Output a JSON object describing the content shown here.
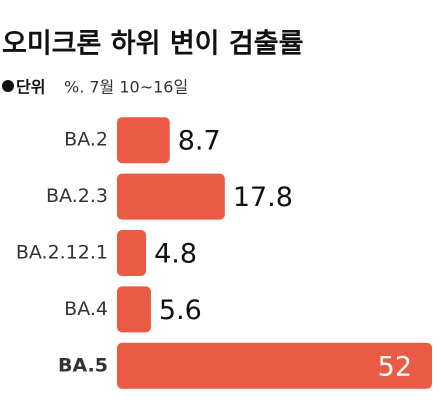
{
  "chart_data": {
    "type": "bar",
    "orientation": "horizontal",
    "title": "오미크론 하위 변이 검출률",
    "unit_label": "단위",
    "subtitle": "%. 7월 10~16일",
    "categories": [
      "BA.2",
      "BA.2.3",
      "BA.2.12.1",
      "BA.4",
      "BA.5"
    ],
    "values": [
      8.7,
      17.8,
      4.8,
      5.6,
      52
    ],
    "color": "#ea5a45",
    "highlight_index": 4
  }
}
